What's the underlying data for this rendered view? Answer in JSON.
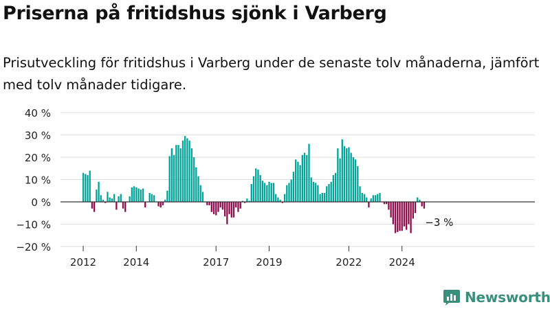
{
  "title": "Priserna på fritidshus sjönk i Varberg",
  "subtitle": "Prisutveckling för fritidshus i Varberg under de senaste tolv månaderna, jämfört med tolv månader tidigare.",
  "brand": {
    "name": "Newsworthy",
    "icon": "newsworthy-chart-icon"
  },
  "chart_data": {
    "type": "bar",
    "unit": "%",
    "ylim": [
      -20,
      40
    ],
    "yticks": [
      {
        "value": 40,
        "label": "40 %"
      },
      {
        "value": 30,
        "label": "30 %"
      },
      {
        "value": 20,
        "label": "20 %"
      },
      {
        "value": 10,
        "label": "10 %"
      },
      {
        "value": 0,
        "label": "0 %"
      },
      {
        "value": -10,
        "label": "−10 %"
      },
      {
        "value": -20,
        "label": "−20 %"
      }
    ],
    "xticks": [
      {
        "year": 2012,
        "label": "2012"
      },
      {
        "year": 2014,
        "label": "2014"
      },
      {
        "year": 2017,
        "label": "2017"
      },
      {
        "year": 2019,
        "label": "2019"
      },
      {
        "year": 2022,
        "label": "2022"
      },
      {
        "year": 2024,
        "label": "2024"
      }
    ],
    "start": "2012-01",
    "frequency": "monthly",
    "values": [
      13,
      12.5,
      12,
      14,
      -3,
      -4.5,
      5.5,
      9,
      3,
      1,
      -0.5,
      4.5,
      2,
      1.5,
      3.5,
      -3.5,
      2.5,
      3.5,
      -3,
      -4.5,
      0,
      2.5,
      6.5,
      7,
      6.5,
      6,
      5.5,
      6,
      -2.5,
      0,
      4,
      3.5,
      3,
      0,
      -2,
      -2.5,
      -1.5,
      1,
      5,
      20.5,
      24,
      21,
      25.5,
      25.5,
      24,
      27.5,
      29.5,
      28.5,
      27.5,
      24,
      20,
      15.5,
      11.5,
      7.5,
      4.5,
      0,
      -1.5,
      -1.5,
      -4.5,
      -5.5,
      -6,
      -4.5,
      -2.5,
      -3.5,
      -6.5,
      -10,
      -5.5,
      -7,
      -7,
      -2.5,
      -4.5,
      -3,
      0.5,
      -0.5,
      1.5,
      0.5,
      8,
      11.5,
      15,
      14.5,
      12,
      9.5,
      8.5,
      7.5,
      9,
      8.5,
      8.5,
      3.5,
      2,
      1,
      -0.5,
      3.5,
      7.5,
      8.5,
      10,
      13.5,
      19,
      18,
      16.5,
      21,
      22,
      21,
      26,
      11,
      9,
      8.5,
      7.5,
      3.5,
      4,
      4,
      7,
      8,
      9,
      12,
      13,
      24,
      19.5,
      28,
      25,
      24,
      24.5,
      22,
      20,
      19,
      16,
      7,
      4,
      3.5,
      2,
      -2.5,
      1.5,
      3,
      3,
      3.5,
      4,
      0,
      -1,
      -1,
      -3.5,
      -7,
      -10,
      -14,
      -13.5,
      -13,
      -13,
      -11,
      -12.5,
      -10,
      -14,
      -7.5,
      -5,
      2,
      1,
      -2,
      -3
    ],
    "colors": {
      "positive": "#00a398",
      "negative": "#8e0c4c",
      "grid": "#dddddd",
      "axis": "#333333"
    },
    "annotation": {
      "text": "−3 %"
    }
  }
}
